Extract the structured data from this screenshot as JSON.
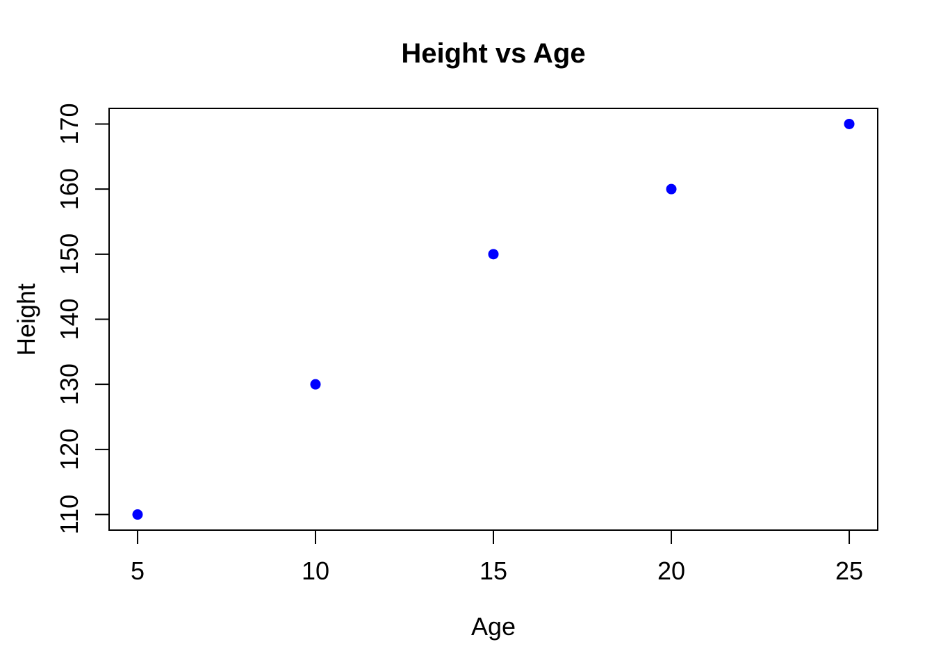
{
  "chart_data": {
    "type": "scatter",
    "title": "Height vs Age",
    "xlabel": "Age",
    "ylabel": "Height",
    "x": [
      5,
      10,
      15,
      20,
      25
    ],
    "y": [
      110,
      130,
      150,
      160,
      170
    ],
    "xticks": [
      5,
      10,
      15,
      20,
      25
    ],
    "yticks": [
      110,
      120,
      130,
      140,
      150,
      160,
      170
    ],
    "xlim": [
      4.2,
      25.8
    ],
    "ylim": [
      107.6,
      172.4
    ],
    "marker": "filled-circle",
    "point_color": "#0000FF",
    "axis_color": "#000000",
    "background_color": "#FFFFFF",
    "grid": false,
    "legend": null
  }
}
